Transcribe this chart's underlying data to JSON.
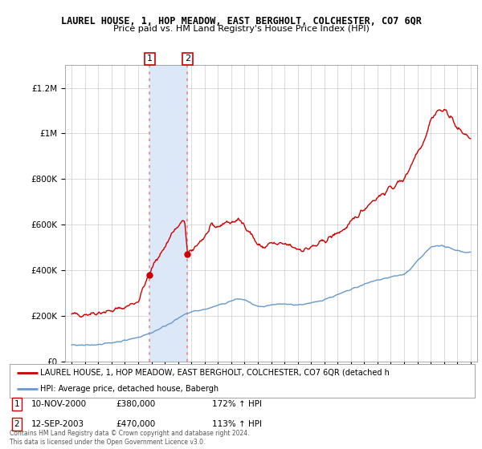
{
  "title": "LAUREL HOUSE, 1, HOP MEADOW, EAST BERGHOLT, COLCHESTER, CO7 6QR",
  "subtitle": "Price paid vs. HM Land Registry's House Price Index (HPI)",
  "legend_label_red": "LAUREL HOUSE, 1, HOP MEADOW, EAST BERGHOLT, COLCHESTER, CO7 6QR (detached h",
  "legend_label_blue": "HPI: Average price, detached house, Babergh",
  "footer": "Contains HM Land Registry data © Crown copyright and database right 2024.\nThis data is licensed under the Open Government Licence v3.0.",
  "sale1_label": "1",
  "sale1_date": "10-NOV-2000",
  "sale1_price": "£380,000",
  "sale1_hpi": "172% ↑ HPI",
  "sale2_label": "2",
  "sale2_date": "12-SEP-2003",
  "sale2_price": "£470,000",
  "sale2_hpi": "113% ↑ HPI",
  "sale1_x": 2000.86,
  "sale1_y": 380000,
  "sale2_x": 2003.71,
  "sale2_y": 470000,
  "xlim": [
    1994.5,
    2025.5
  ],
  "ylim": [
    0,
    1300000
  ],
  "yticks": [
    0,
    200000,
    400000,
    600000,
    800000,
    1000000,
    1200000
  ],
  "ytick_labels": [
    "£0",
    "£200K",
    "£400K",
    "£600K",
    "£800K",
    "£1M",
    "£1.2M"
  ],
  "red_color": "#cc0000",
  "blue_color": "#6699cc",
  "vline_color": "#e88888",
  "highlight_fill": "#dce8f8",
  "grid_color": "#cccccc",
  "background_color": "#ffffff",
  "red_base_points_x": [
    1995.0,
    1996.0,
    1997.0,
    1998.0,
    1999.0,
    2000.0,
    2000.5,
    2000.86,
    2001.2,
    2001.5,
    2002.0,
    2002.5,
    2003.0,
    2003.5,
    2003.71,
    2004.0,
    2004.5,
    2005.0,
    2005.5,
    2006.0,
    2006.5,
    2007.0,
    2007.5,
    2008.0,
    2008.5,
    2009.0,
    2009.5,
    2010.0,
    2010.5,
    2011.0,
    2011.5,
    2012.0,
    2012.5,
    2013.0,
    2013.5,
    2014.0,
    2014.5,
    2015.0,
    2015.5,
    2016.0,
    2016.5,
    2017.0,
    2017.5,
    2018.0,
    2018.5,
    2019.0,
    2019.5,
    2020.0,
    2020.5,
    2021.0,
    2021.5,
    2022.0,
    2022.5,
    2023.0,
    2023.5,
    2024.0,
    2024.5,
    2025.0
  ],
  "red_base_points_y": [
    205000,
    208000,
    215000,
    222000,
    238000,
    265000,
    340000,
    380000,
    430000,
    460000,
    500000,
    560000,
    590000,
    620000,
    470000,
    480000,
    520000,
    545000,
    590000,
    590000,
    610000,
    610000,
    620000,
    600000,
    560000,
    510000,
    500000,
    520000,
    510000,
    515000,
    505000,
    495000,
    490000,
    500000,
    510000,
    530000,
    545000,
    565000,
    580000,
    605000,
    640000,
    670000,
    700000,
    720000,
    740000,
    760000,
    780000,
    800000,
    860000,
    920000,
    970000,
    1060000,
    1100000,
    1100000,
    1080000,
    1020000,
    1000000,
    980000
  ],
  "blue_base_points_x": [
    1995.0,
    1996.0,
    1997.0,
    1998.0,
    1999.0,
    2000.0,
    2001.0,
    2002.0,
    2003.0,
    2003.5,
    2004.0,
    2005.0,
    2006.0,
    2007.0,
    2007.5,
    2008.0,
    2008.5,
    2009.0,
    2009.5,
    2010.0,
    2011.0,
    2012.0,
    2013.0,
    2014.0,
    2015.0,
    2016.0,
    2017.0,
    2018.0,
    2019.0,
    2020.0,
    2020.5,
    2021.0,
    2021.5,
    2022.0,
    2022.5,
    2023.0,
    2023.5,
    2024.0,
    2024.5,
    2025.0
  ],
  "blue_base_points_y": [
    72000,
    70000,
    75000,
    82000,
    92000,
    106000,
    126000,
    155000,
    188000,
    205000,
    218000,
    228000,
    245000,
    265000,
    275000,
    270000,
    255000,
    240000,
    238000,
    248000,
    252000,
    248000,
    255000,
    272000,
    292000,
    315000,
    338000,
    358000,
    370000,
    382000,
    405000,
    440000,
    470000,
    500000,
    510000,
    505000,
    495000,
    488000,
    480000,
    478000
  ]
}
